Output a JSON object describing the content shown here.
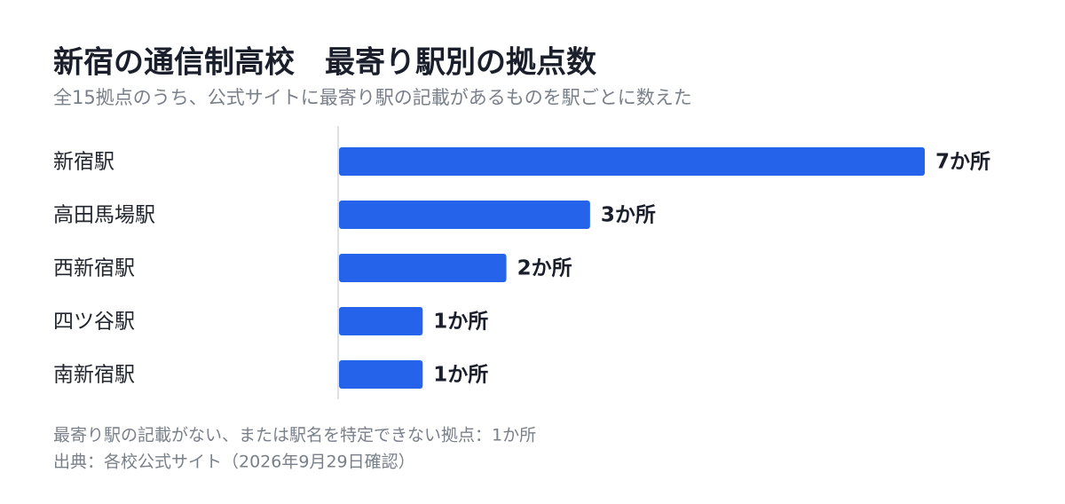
{
  "chart_data": {
    "type": "bar",
    "orientation": "horizontal",
    "title": "新宿の通信制高校　最寄り駅別の拠点数",
    "subtitle": "全15拠点のうち、公式サイトに最寄り駅の記載があるものを駅ごとに数えた",
    "categories": [
      "新宿駅",
      "高田馬場駅",
      "西新宿駅",
      "四ツ谷駅",
      "南新宿駅"
    ],
    "values": [
      7,
      3,
      2,
      1,
      1
    ],
    "value_labels": [
      "7か所",
      "3か所",
      "2か所",
      "1か所",
      "1か所"
    ],
    "color": "#2563eb",
    "footnotes": [
      "最寄り駅の記載がない、または駅名を特定できない拠点：1か所",
      "出典：各校公式サイト（2026年9月29日確認）"
    ]
  }
}
